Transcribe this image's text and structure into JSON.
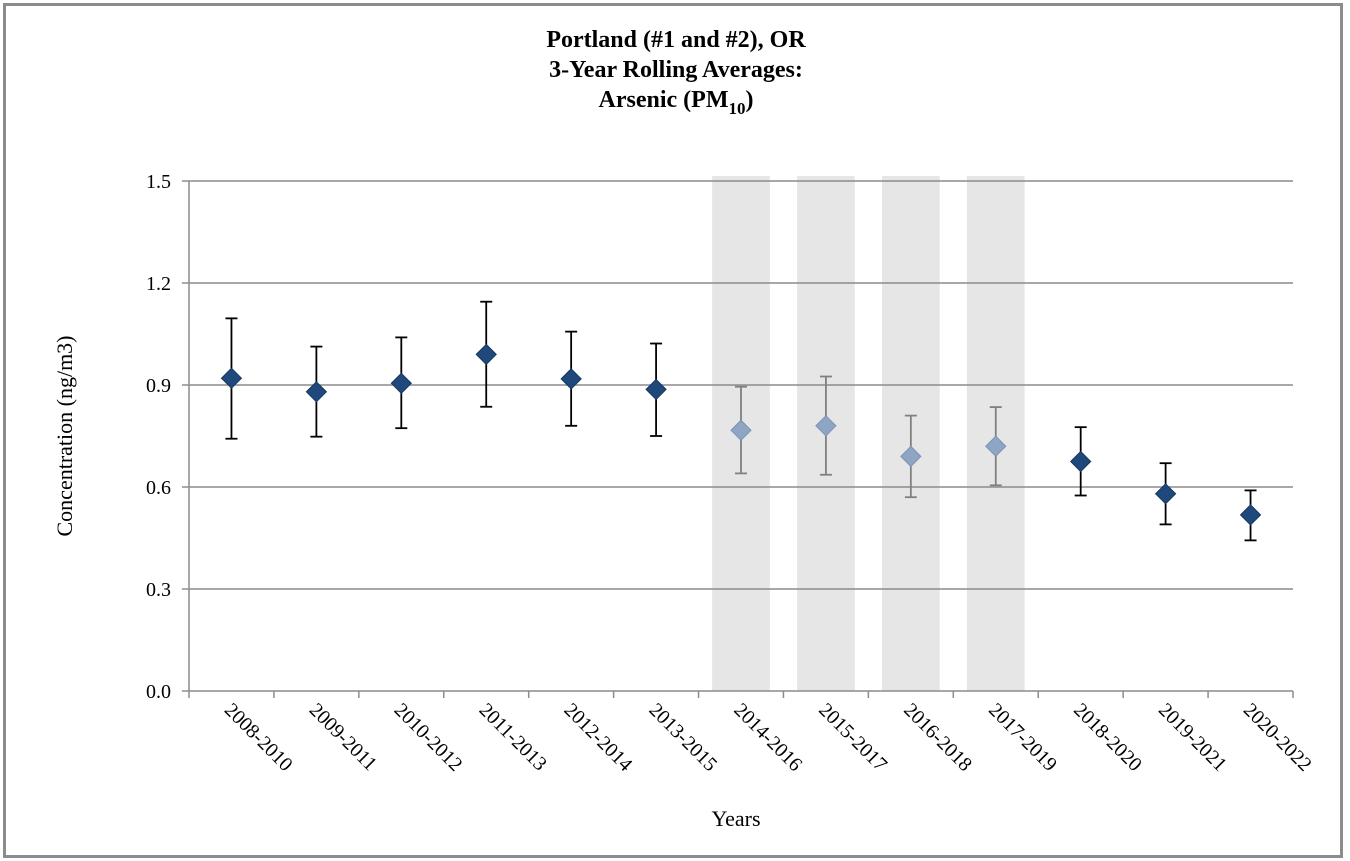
{
  "chart_data": {
    "type": "scatter",
    "title_lines": [
      "Portland (#1 and #2), OR",
      "3-Year Rolling Averages:"
    ],
    "title_line3": {
      "text": "Arsenic (PM",
      "subscript": "10",
      "suffix": ")"
    },
    "xlabel": "Years",
    "ylabel": "Concentration (ng/m3)",
    "ylim": [
      0,
      1.5
    ],
    "yticks": [
      "0.0",
      "0.3",
      "0.6",
      "0.9",
      "1.2",
      "1.5"
    ],
    "grid": true,
    "categories": [
      "2008-2010",
      "2009-2011",
      "2010-2012",
      "2011-2013",
      "2012-2014",
      "2013-2015",
      "2014-2016",
      "2015-2017",
      "2016-2018",
      "2017-2019",
      "2018-2020",
      "2019-2021",
      "2020-2022"
    ],
    "values": [
      0.92,
      0.88,
      0.905,
      0.99,
      0.918,
      0.887,
      0.767,
      0.78,
      0.69,
      0.72,
      0.675,
      0.58,
      0.518
    ],
    "error_low": [
      0.742,
      0.748,
      0.773,
      0.836,
      0.78,
      0.75,
      0.64,
      0.636,
      0.57,
      0.605,
      0.575,
      0.49,
      0.443
    ],
    "error_high": [
      1.096,
      1.013,
      1.04,
      1.145,
      1.057,
      1.022,
      0.895,
      0.925,
      0.81,
      0.835,
      0.776,
      0.67,
      0.59
    ],
    "shaded_categories": [
      "2014-2016",
      "2015-2017",
      "2016-2018",
      "2017-2019"
    ],
    "colors": {
      "marker": "#1f497d",
      "marker_shaded": "#8ea5c4",
      "error_bar": "#000000",
      "error_bar_shaded": "#808080",
      "shade": "#e6e6e6",
      "grid": "#8c8c8c",
      "frame": "#8c8c8c"
    }
  }
}
